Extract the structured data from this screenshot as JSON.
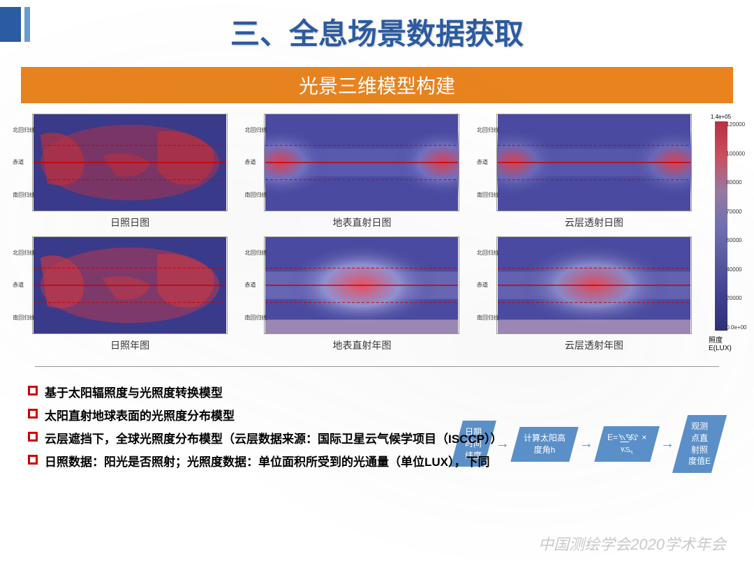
{
  "title": "三、全息场景数据获取",
  "subtitle": "光景三维模型构建",
  "maps": {
    "lat_labels": [
      "北回归线",
      "赤道",
      "南回归线"
    ],
    "captions": [
      "日照日图",
      "地表直射日图",
      "云层透射日图",
      "日照年图",
      "地表直射年图",
      "云层透射年图"
    ],
    "panels": [
      {
        "type": "continents",
        "base": "#3a3a8a",
        "hot": "#b83040"
      },
      {
        "type": "gradient",
        "base": "#4a4aa0",
        "spots": [
          [
            0.08,
            0.5
          ],
          [
            0.92,
            0.5
          ]
        ],
        "spot_col": "#d84050",
        "center": "#7070c0"
      },
      {
        "type": "gradient",
        "base": "#4a4aa0",
        "spots": [
          [
            0.08,
            0.5
          ],
          [
            0.92,
            0.5
          ]
        ],
        "spot_col": "#d84050",
        "center": "#6868b8"
      },
      {
        "type": "continents",
        "base": "#3a3a8a",
        "hot": "#c03848"
      },
      {
        "type": "gradient",
        "base": "#4a4aa0",
        "spots": [
          [
            0.5,
            0.5
          ]
        ],
        "spot_col": "#e85060",
        "center": "#9090d0"
      },
      {
        "type": "gradient",
        "base": "#4a4aa0",
        "spots": [
          [
            0.5,
            0.5
          ]
        ],
        "spot_col": "#e04858",
        "center": "#8888c8"
      }
    ]
  },
  "colorbar": {
    "gradient": [
      "#b83040",
      "#c85060",
      "#9878a0",
      "#7070b0",
      "#5858a0",
      "#404090",
      "#303078"
    ],
    "top_label": "1.4e+05",
    "ticks": [
      "120000",
      "100000",
      "80000",
      "70000",
      "60000",
      "40000",
      "20000",
      "0.0e+00"
    ],
    "label": "照度E(LUX)"
  },
  "bullets": [
    "基于太阳辐照度与光照度转换模型",
    "太阳直射地球表面的光照度分布模型",
    "云层遮挡下，全球光照度分布模型（云层数据来源：国际卫星云气候学项目（ISCCP））",
    "日照数据：阳光是否照射；光照度数据：单位面积所受到的光通量（单位LUX），下同"
  ],
  "flow": {
    "boxes": [
      "日期\n时间\n纬度",
      "计算太阳高\n度角h",
      "E= h/90° ×\nKSr",
      "观测\n点直\n射照\n度值E"
    ],
    "eq_top": "h",
    "eq_bot": "90°"
  },
  "watermark": "中国测绘学会2020学术年会"
}
